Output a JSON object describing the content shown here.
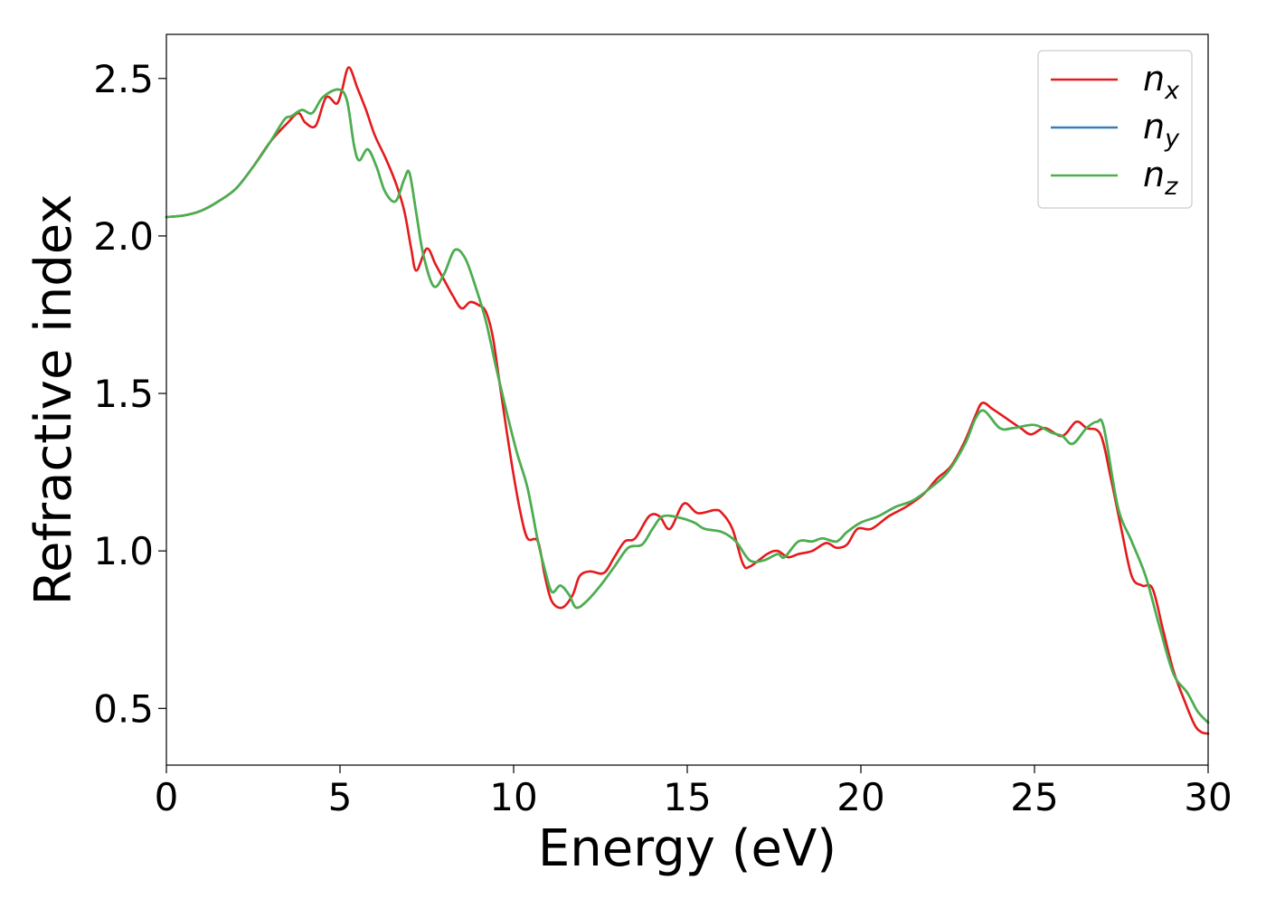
{
  "chart_data": {
    "type": "line",
    "title": "",
    "xlabel": "Energy (eV)",
    "ylabel": "Refractive index",
    "xlim": [
      0,
      30
    ],
    "ylim": [
      0.32,
      2.64
    ],
    "xticks": [
      0,
      5,
      10,
      15,
      20,
      25,
      30
    ],
    "xtick_labels": [
      "0",
      "5",
      "10",
      "15",
      "20",
      "25",
      "30"
    ],
    "yticks": [
      0.5,
      1.0,
      1.5,
      2.0,
      2.5
    ],
    "ytick_labels": [
      "0.5",
      "1.0",
      "1.5",
      "2.0",
      "2.5"
    ],
    "grid": false,
    "legend_position": "top-right",
    "series": [
      {
        "name": "n_x",
        "legend_base": "n",
        "legend_sub": "x",
        "color": "#e41a1c",
        "points": [
          [
            0,
            2.06
          ],
          [
            0.5,
            2.065
          ],
          [
            1.0,
            2.08
          ],
          [
            1.5,
            2.11
          ],
          [
            2.0,
            2.15
          ],
          [
            2.5,
            2.22
          ],
          [
            3.0,
            2.3
          ],
          [
            3.5,
            2.36
          ],
          [
            3.8,
            2.39
          ],
          [
            4.0,
            2.36
          ],
          [
            4.3,
            2.35
          ],
          [
            4.6,
            2.44
          ],
          [
            4.9,
            2.42
          ],
          [
            5.05,
            2.46
          ],
          [
            5.25,
            2.535
          ],
          [
            5.5,
            2.47
          ],
          [
            5.75,
            2.4
          ],
          [
            6.0,
            2.32
          ],
          [
            6.3,
            2.25
          ],
          [
            6.6,
            2.17
          ],
          [
            6.85,
            2.08
          ],
          [
            7.05,
            1.96
          ],
          [
            7.2,
            1.89
          ],
          [
            7.5,
            1.96
          ],
          [
            7.75,
            1.91
          ],
          [
            8.0,
            1.86
          ],
          [
            8.25,
            1.81
          ],
          [
            8.5,
            1.77
          ],
          [
            8.75,
            1.79
          ],
          [
            9.0,
            1.78
          ],
          [
            9.2,
            1.76
          ],
          [
            9.4,
            1.68
          ],
          [
            9.6,
            1.53
          ],
          [
            9.8,
            1.38
          ],
          [
            10.0,
            1.24
          ],
          [
            10.2,
            1.12
          ],
          [
            10.4,
            1.04
          ],
          [
            10.7,
            1.03
          ],
          [
            10.9,
            0.92
          ],
          [
            11.1,
            0.84
          ],
          [
            11.4,
            0.82
          ],
          [
            11.7,
            0.86
          ],
          [
            11.9,
            0.92
          ],
          [
            12.2,
            0.935
          ],
          [
            12.6,
            0.93
          ],
          [
            12.9,
            0.98
          ],
          [
            13.2,
            1.03
          ],
          [
            13.5,
            1.04
          ],
          [
            13.9,
            1.11
          ],
          [
            14.2,
            1.11
          ],
          [
            14.5,
            1.07
          ],
          [
            14.9,
            1.15
          ],
          [
            15.3,
            1.12
          ],
          [
            15.8,
            1.13
          ],
          [
            16.0,
            1.12
          ],
          [
            16.3,
            1.07
          ],
          [
            16.6,
            0.96
          ],
          [
            16.8,
            0.95
          ],
          [
            17.3,
            0.99
          ],
          [
            17.6,
            1.0
          ],
          [
            17.9,
            0.98
          ],
          [
            18.2,
            0.99
          ],
          [
            18.6,
            1.0
          ],
          [
            19.0,
            1.025
          ],
          [
            19.3,
            1.01
          ],
          [
            19.6,
            1.02
          ],
          [
            19.9,
            1.07
          ],
          [
            20.3,
            1.07
          ],
          [
            20.8,
            1.11
          ],
          [
            21.3,
            1.14
          ],
          [
            21.8,
            1.18
          ],
          [
            22.2,
            1.23
          ],
          [
            22.6,
            1.27
          ],
          [
            23.0,
            1.35
          ],
          [
            23.3,
            1.43
          ],
          [
            23.5,
            1.47
          ],
          [
            23.8,
            1.45
          ],
          [
            24.2,
            1.42
          ],
          [
            24.6,
            1.39
          ],
          [
            24.9,
            1.37
          ],
          [
            25.3,
            1.39
          ],
          [
            25.8,
            1.365
          ],
          [
            26.2,
            1.41
          ],
          [
            26.5,
            1.39
          ],
          [
            26.9,
            1.37
          ],
          [
            27.2,
            1.23
          ],
          [
            27.5,
            1.07
          ],
          [
            27.8,
            0.92
          ],
          [
            28.1,
            0.89
          ],
          [
            28.4,
            0.88
          ],
          [
            28.7,
            0.75
          ],
          [
            29.0,
            0.62
          ],
          [
            29.3,
            0.53
          ],
          [
            29.6,
            0.45
          ],
          [
            29.8,
            0.425
          ],
          [
            30.0,
            0.42
          ]
        ]
      },
      {
        "name": "n_y",
        "legend_base": "n",
        "legend_sub": "y",
        "color": "#377eb8",
        "points": [
          [
            0,
            2.06
          ],
          [
            0.5,
            2.065
          ],
          [
            1.0,
            2.08
          ],
          [
            1.5,
            2.11
          ],
          [
            2.0,
            2.15
          ],
          [
            2.5,
            2.22
          ],
          [
            3.0,
            2.3
          ],
          [
            3.4,
            2.37
          ],
          [
            3.6,
            2.38
          ],
          [
            3.9,
            2.4
          ],
          [
            4.2,
            2.39
          ],
          [
            4.5,
            2.44
          ],
          [
            4.95,
            2.465
          ],
          [
            5.2,
            2.43
          ],
          [
            5.4,
            2.29
          ],
          [
            5.55,
            2.24
          ],
          [
            5.8,
            2.275
          ],
          [
            6.05,
            2.22
          ],
          [
            6.3,
            2.14
          ],
          [
            6.6,
            2.11
          ],
          [
            6.85,
            2.18
          ],
          [
            7.0,
            2.2
          ],
          [
            7.2,
            2.07
          ],
          [
            7.4,
            1.94
          ],
          [
            7.7,
            1.84
          ],
          [
            8.0,
            1.88
          ],
          [
            8.3,
            1.955
          ],
          [
            8.6,
            1.93
          ],
          [
            8.9,
            1.84
          ],
          [
            9.2,
            1.73
          ],
          [
            9.5,
            1.58
          ],
          [
            9.8,
            1.44
          ],
          [
            10.1,
            1.31
          ],
          [
            10.4,
            1.2
          ],
          [
            10.7,
            1.03
          ],
          [
            10.9,
            0.94
          ],
          [
            11.1,
            0.87
          ],
          [
            11.35,
            0.89
          ],
          [
            11.6,
            0.86
          ],
          [
            11.8,
            0.82
          ],
          [
            12.1,
            0.84
          ],
          [
            12.5,
            0.89
          ],
          [
            12.9,
            0.95
          ],
          [
            13.3,
            1.01
          ],
          [
            13.7,
            1.02
          ],
          [
            14.0,
            1.07
          ],
          [
            14.3,
            1.11
          ],
          [
            14.8,
            1.105
          ],
          [
            15.2,
            1.09
          ],
          [
            15.5,
            1.07
          ],
          [
            16.0,
            1.06
          ],
          [
            16.4,
            1.03
          ],
          [
            16.8,
            0.97
          ],
          [
            17.2,
            0.97
          ],
          [
            17.6,
            0.99
          ],
          [
            17.8,
            0.98
          ],
          [
            18.2,
            1.03
          ],
          [
            18.6,
            1.03
          ],
          [
            18.9,
            1.04
          ],
          [
            19.3,
            1.03
          ],
          [
            19.6,
            1.06
          ],
          [
            20.0,
            1.09
          ],
          [
            20.5,
            1.11
          ],
          [
            21.0,
            1.14
          ],
          [
            21.5,
            1.16
          ],
          [
            22.0,
            1.2
          ],
          [
            22.5,
            1.25
          ],
          [
            23.0,
            1.34
          ],
          [
            23.3,
            1.42
          ],
          [
            23.55,
            1.445
          ],
          [
            24.0,
            1.39
          ],
          [
            24.4,
            1.39
          ],
          [
            25.0,
            1.4
          ],
          [
            25.5,
            1.375
          ],
          [
            25.8,
            1.365
          ],
          [
            26.1,
            1.34
          ],
          [
            26.5,
            1.39
          ],
          [
            26.8,
            1.41
          ],
          [
            27.0,
            1.39
          ],
          [
            27.4,
            1.14
          ],
          [
            27.8,
            1.03
          ],
          [
            28.2,
            0.92
          ],
          [
            28.6,
            0.76
          ],
          [
            29.0,
            0.61
          ],
          [
            29.4,
            0.55
          ],
          [
            29.7,
            0.49
          ],
          [
            30.0,
            0.455
          ]
        ]
      },
      {
        "name": "n_z",
        "legend_base": "n",
        "legend_sub": "z",
        "color": "#4daf4a",
        "points": [
          [
            0,
            2.06
          ],
          [
            0.5,
            2.065
          ],
          [
            1.0,
            2.08
          ],
          [
            1.5,
            2.11
          ],
          [
            2.0,
            2.15
          ],
          [
            2.5,
            2.22
          ],
          [
            3.0,
            2.3
          ],
          [
            3.4,
            2.37
          ],
          [
            3.6,
            2.38
          ],
          [
            3.9,
            2.4
          ],
          [
            4.2,
            2.39
          ],
          [
            4.5,
            2.44
          ],
          [
            4.95,
            2.465
          ],
          [
            5.2,
            2.43
          ],
          [
            5.4,
            2.29
          ],
          [
            5.55,
            2.24
          ],
          [
            5.8,
            2.275
          ],
          [
            6.05,
            2.22
          ],
          [
            6.3,
            2.14
          ],
          [
            6.6,
            2.11
          ],
          [
            6.85,
            2.18
          ],
          [
            7.0,
            2.2
          ],
          [
            7.2,
            2.07
          ],
          [
            7.4,
            1.94
          ],
          [
            7.7,
            1.84
          ],
          [
            8.0,
            1.88
          ],
          [
            8.3,
            1.955
          ],
          [
            8.6,
            1.93
          ],
          [
            8.9,
            1.84
          ],
          [
            9.2,
            1.73
          ],
          [
            9.5,
            1.58
          ],
          [
            9.8,
            1.44
          ],
          [
            10.1,
            1.31
          ],
          [
            10.4,
            1.2
          ],
          [
            10.7,
            1.03
          ],
          [
            10.9,
            0.94
          ],
          [
            11.1,
            0.87
          ],
          [
            11.35,
            0.89
          ],
          [
            11.6,
            0.86
          ],
          [
            11.8,
            0.82
          ],
          [
            12.1,
            0.84
          ],
          [
            12.5,
            0.89
          ],
          [
            12.9,
            0.95
          ],
          [
            13.3,
            1.01
          ],
          [
            13.7,
            1.02
          ],
          [
            14.0,
            1.07
          ],
          [
            14.3,
            1.11
          ],
          [
            14.8,
            1.105
          ],
          [
            15.2,
            1.09
          ],
          [
            15.5,
            1.07
          ],
          [
            16.0,
            1.06
          ],
          [
            16.4,
            1.03
          ],
          [
            16.8,
            0.97
          ],
          [
            17.2,
            0.97
          ],
          [
            17.6,
            0.99
          ],
          [
            17.8,
            0.98
          ],
          [
            18.2,
            1.03
          ],
          [
            18.6,
            1.03
          ],
          [
            18.9,
            1.04
          ],
          [
            19.3,
            1.03
          ],
          [
            19.6,
            1.06
          ],
          [
            20.0,
            1.09
          ],
          [
            20.5,
            1.11
          ],
          [
            21.0,
            1.14
          ],
          [
            21.5,
            1.16
          ],
          [
            22.0,
            1.2
          ],
          [
            22.5,
            1.25
          ],
          [
            23.0,
            1.34
          ],
          [
            23.3,
            1.42
          ],
          [
            23.55,
            1.445
          ],
          [
            24.0,
            1.39
          ],
          [
            24.4,
            1.39
          ],
          [
            25.0,
            1.4
          ],
          [
            25.5,
            1.375
          ],
          [
            25.8,
            1.365
          ],
          [
            26.1,
            1.34
          ],
          [
            26.5,
            1.39
          ],
          [
            26.8,
            1.41
          ],
          [
            27.0,
            1.39
          ],
          [
            27.4,
            1.14
          ],
          [
            27.8,
            1.03
          ],
          [
            28.2,
            0.92
          ],
          [
            28.6,
            0.76
          ],
          [
            29.0,
            0.61
          ],
          [
            29.4,
            0.55
          ],
          [
            29.7,
            0.49
          ],
          [
            30.0,
            0.455
          ]
        ]
      }
    ]
  }
}
